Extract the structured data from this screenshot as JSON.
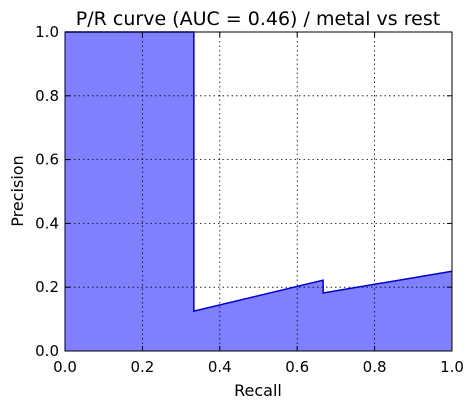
{
  "chart_data": {
    "type": "area",
    "title": "P/R curve (AUC = 0.46) / metal vs rest",
    "xlabel": "Recall",
    "ylabel": "Precision",
    "xlim": [
      0.0,
      1.0
    ],
    "ylim": [
      0.0,
      1.0
    ],
    "x_ticks": [
      "0.0",
      "0.2",
      "0.4",
      "0.6",
      "0.8",
      "1.0"
    ],
    "y_ticks": [
      "0.0",
      "0.2",
      "0.4",
      "0.6",
      "0.8",
      "1.0"
    ],
    "grid": true,
    "grid_style": "dotted",
    "legend": "none",
    "series": [
      {
        "x": [
          0.0,
          0.333,
          0.333,
          0.667,
          0.667,
          1.0
        ],
        "y": [
          1.0,
          1.0,
          0.125,
          0.222,
          0.182,
          0.25
        ],
        "line_color": "#0000cc",
        "fill_color": "#8080ff"
      }
    ]
  }
}
